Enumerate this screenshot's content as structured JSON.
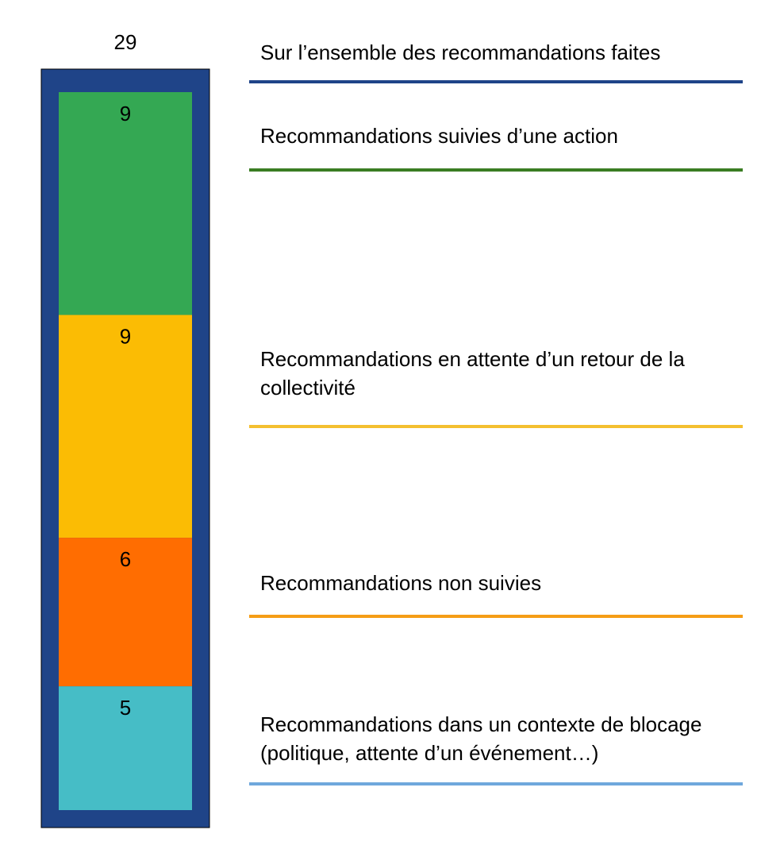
{
  "chart_data": {
    "type": "bar",
    "stacked": true,
    "total": {
      "value": "29",
      "label": "Sur l’ensemble des recommandations faites",
      "color": "#1f4488"
    },
    "segments": [
      {
        "value": 9,
        "label_text": "9",
        "legend": "Recommandations suivies d’une action",
        "color": "#34a853",
        "rule_color": "#3a7d23"
      },
      {
        "value": 9,
        "label_text": "9",
        "legend": "Recommandations en attente d’un retour de la collectivité",
        "color": "#fbbc04",
        "rule_color": "#f4c030"
      },
      {
        "value": 6,
        "label_text": "6",
        "legend": "Recommandations non suivies",
        "color": "#ff6d01",
        "rule_color": "#f59d16"
      },
      {
        "value": 5,
        "label_text": "5",
        "legend": "Recommandations dans un contexte de blocage (politique, attente d’un événement…)",
        "color": "#46bdc6",
        "rule_color": "#6fa8dc"
      }
    ]
  }
}
